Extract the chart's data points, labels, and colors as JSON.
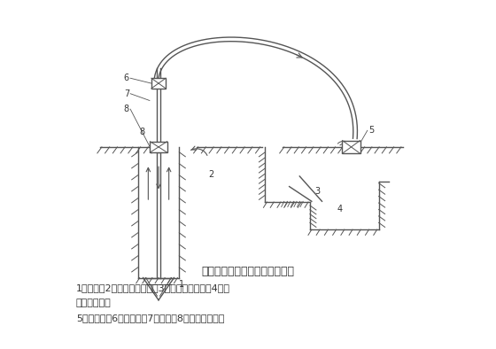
{
  "title": "正循环回转钻进成孔原理示意图",
  "caption_line1": "1一钻头；2一泥浆循环方向；3一沉淀池及沉渣；4一泥",
  "caption_line2": "浆池及泥浆；",
  "caption_line3": "5一泥浆泵；6一水龙头；7一钻杆；8一钻机回转装置",
  "bg_color": "#ffffff",
  "line_color": "#555555",
  "label_color": "#333333",
  "title_color": "#333333",
  "xlim": [
    0,
    11
  ],
  "ylim": [
    0,
    10
  ]
}
